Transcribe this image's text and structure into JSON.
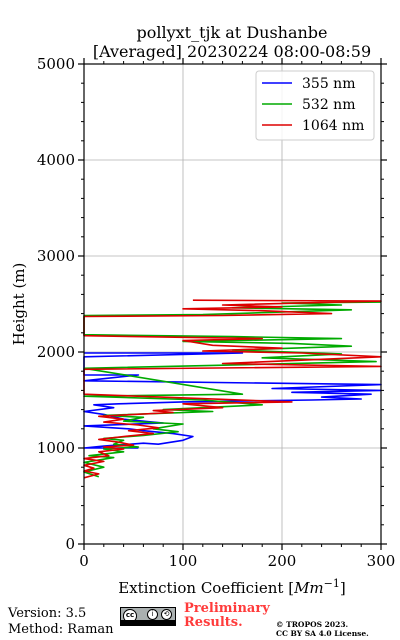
{
  "chart_data": {
    "type": "line",
    "title_line1": "pollyxt_tjk at Dushanbe",
    "title_line2": "[Averaged] 20230224 08:00-08:59",
    "xlabel_prefix": "Extinction Coefficient [",
    "xlabel_unit": "Mm",
    "xlabel_exp": "−1",
    "xlabel_suffix": "]",
    "ylabel": "Height (m)",
    "xlim": [
      0,
      300
    ],
    "ylim": [
      0,
      5000
    ],
    "x_ticks": [
      0,
      100,
      200,
      300
    ],
    "y_ticks": [
      0,
      1000,
      2000,
      3000,
      4000,
      5000
    ],
    "grid": true,
    "legend_position": "upper-right",
    "series": [
      {
        "name": "355 nm",
        "color": "#0000ff",
        "points": [
          [
            55,
            1000
          ],
          [
            0,
            1000
          ],
          [
            20,
            1020
          ],
          [
            60,
            1050
          ],
          [
            75,
            1040
          ],
          [
            100,
            1080
          ],
          [
            110,
            1120
          ],
          [
            90,
            1150
          ],
          [
            60,
            1180
          ],
          [
            45,
            1200
          ],
          [
            0,
            1230
          ],
          [
            80,
            1260
          ],
          [
            40,
            1300
          ],
          [
            20,
            1350
          ],
          [
            0,
            1380
          ],
          [
            30,
            1420
          ],
          [
            10,
            1450
          ],
          [
            35,
            1460
          ],
          [
            100,
            1480
          ],
          [
            230,
            1500
          ],
          [
            280,
            1510
          ],
          [
            240,
            1530
          ],
          [
            290,
            1560
          ],
          [
            210,
            1580
          ],
          [
            300,
            1600
          ],
          [
            190,
            1620
          ],
          [
            300,
            1660
          ],
          [
            0,
            1700
          ],
          [
            55,
            1760
          ],
          [
            0,
            1760
          ],
          [
            0,
            1950
          ],
          [
            160,
            1990
          ],
          [
            0,
            1990
          ]
        ]
      },
      {
        "name": "532 nm",
        "color": "#00aa00",
        "points": [
          [
            15,
            700
          ],
          [
            0,
            750
          ],
          [
            20,
            800
          ],
          [
            0,
            850
          ],
          [
            30,
            900
          ],
          [
            5,
            920
          ],
          [
            40,
            960
          ],
          [
            20,
            990
          ],
          [
            55,
            1010
          ],
          [
            30,
            1040
          ],
          [
            40,
            1080
          ],
          [
            20,
            1100
          ],
          [
            60,
            1130
          ],
          [
            95,
            1170
          ],
          [
            70,
            1200
          ],
          [
            100,
            1250
          ],
          [
            40,
            1280
          ],
          [
            60,
            1320
          ],
          [
            20,
            1340
          ],
          [
            130,
            1380
          ],
          [
            80,
            1400
          ],
          [
            180,
            1450
          ],
          [
            120,
            1500
          ],
          [
            0,
            1540
          ],
          [
            160,
            1560
          ],
          [
            0,
            1830
          ],
          [
            130,
            1860
          ],
          [
            295,
            1900
          ],
          [
            180,
            1940
          ],
          [
            260,
            1980
          ],
          [
            150,
            2020
          ],
          [
            270,
            2060
          ],
          [
            210,
            2090
          ],
          [
            100,
            2110
          ],
          [
            260,
            2140
          ],
          [
            150,
            2160
          ],
          [
            0,
            2180
          ],
          [
            0,
            2380
          ],
          [
            120,
            2390
          ],
          [
            210,
            2420
          ],
          [
            270,
            2440
          ],
          [
            150,
            2460
          ],
          [
            260,
            2490
          ],
          [
            200,
            2510
          ],
          [
            300,
            2520
          ]
        ]
      },
      {
        "name": "1064 nm",
        "color": "#dd0000",
        "points": [
          [
            0,
            690
          ],
          [
            15,
            730
          ],
          [
            0,
            760
          ],
          [
            10,
            790
          ],
          [
            0,
            820
          ],
          [
            20,
            860
          ],
          [
            0,
            890
          ],
          [
            25,
            920
          ],
          [
            15,
            960
          ],
          [
            40,
            990
          ],
          [
            20,
            1010
          ],
          [
            50,
            1030
          ],
          [
            35,
            1060
          ],
          [
            15,
            1090
          ],
          [
            40,
            1120
          ],
          [
            70,
            1150
          ],
          [
            45,
            1180
          ],
          [
            75,
            1210
          ],
          [
            55,
            1240
          ],
          [
            20,
            1270
          ],
          [
            40,
            1300
          ],
          [
            15,
            1330
          ],
          [
            90,
            1370
          ],
          [
            70,
            1390
          ],
          [
            140,
            1420
          ],
          [
            100,
            1460
          ],
          [
            210,
            1480
          ],
          [
            0,
            1560
          ],
          [
            0,
            1820
          ],
          [
            300,
            1850
          ],
          [
            140,
            1880
          ],
          [
            300,
            1950
          ],
          [
            220,
            1990
          ],
          [
            120,
            2010
          ],
          [
            200,
            2040
          ],
          [
            130,
            2070
          ],
          [
            100,
            2120
          ],
          [
            180,
            2140
          ],
          [
            0,
            2170
          ],
          [
            0,
            2370
          ],
          [
            140,
            2380
          ],
          [
            250,
            2400
          ],
          [
            180,
            2430
          ],
          [
            100,
            2450
          ],
          [
            200,
            2470
          ],
          [
            140,
            2490
          ],
          [
            300,
            2530
          ],
          [
            110,
            2540
          ]
        ]
      }
    ]
  },
  "footer": {
    "version": "Version: 3.5",
    "method": "Method: Raman",
    "preliminary_line1": "Preliminary",
    "preliminary_line2": "Results.",
    "copyright_line1": "© TROPOS 2023.",
    "copyright_line2": "CC BY SA 4.0 License.",
    "badge_cc": "cc",
    "badge_by": "i",
    "badge_sa": "⟲"
  }
}
